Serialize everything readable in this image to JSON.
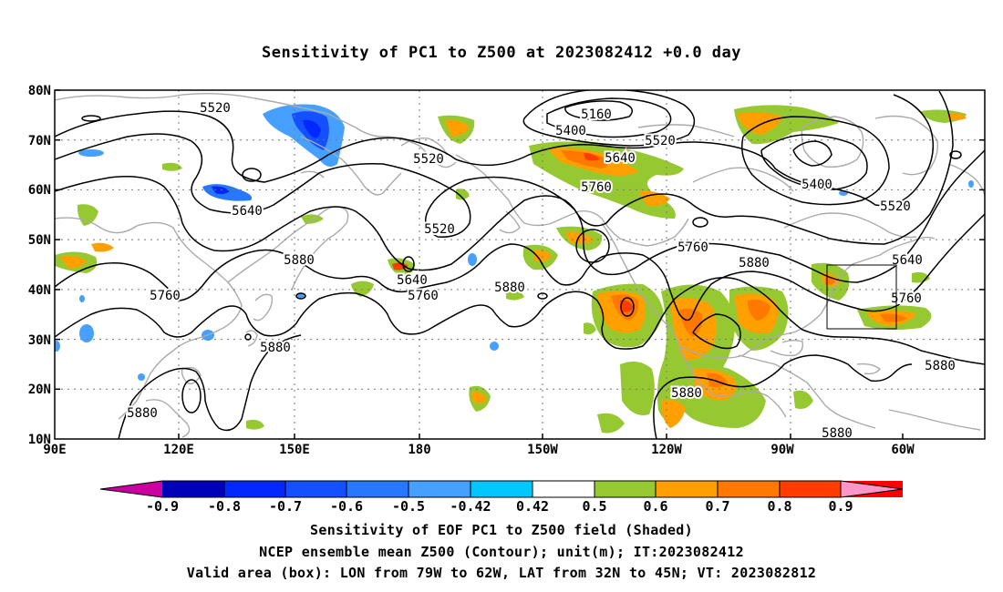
{
  "title": "Sensitivity of PC1 to Z500 at 2023082412 +0.0 day",
  "map": {
    "lon_labels": [
      "90E",
      "120E",
      "150E",
      "180",
      "150W",
      "120W",
      "90W",
      "60W"
    ],
    "lat_labels": [
      "80N",
      "70N",
      "60N",
      "50N",
      "40N",
      "30N",
      "20N",
      "10N"
    ],
    "contour_labels": [
      "5160",
      "5400",
      "5520",
      "5640",
      "5760",
      "5880"
    ],
    "contour_interval_m": 120,
    "valid_box": {
      "lon_from": "79W",
      "lon_to": "62W",
      "lat_from": "32N",
      "lat_to": "45N"
    }
  },
  "colorbar": {
    "colors": [
      "#cc00a0",
      "#0000b8",
      "#0028ff",
      "#1450ff",
      "#2878ff",
      "#46a0ff",
      "#00c8ff",
      "#ffffff",
      "#96c832",
      "#ffa000",
      "#ff7800",
      "#ff3c00",
      "#ff0000",
      "#ff96c8"
    ],
    "labels": [
      "-0.9",
      "-0.8",
      "-0.7",
      "-0.6",
      "-0.5",
      "-0.42",
      "0.42",
      "0.5",
      "0.6",
      "0.7",
      "0.8",
      "0.9"
    ]
  },
  "caption": {
    "line1": "Sensitivity of EOF PC1 to Z500 field (Shaded)",
    "line2": "NCEP ensemble mean Z500 (Contour); unit(m); IT:2023082412",
    "line3": "Valid area (box): LON from 79W to 62W, LAT from 32N to 45N; VT: 2023082812"
  }
}
